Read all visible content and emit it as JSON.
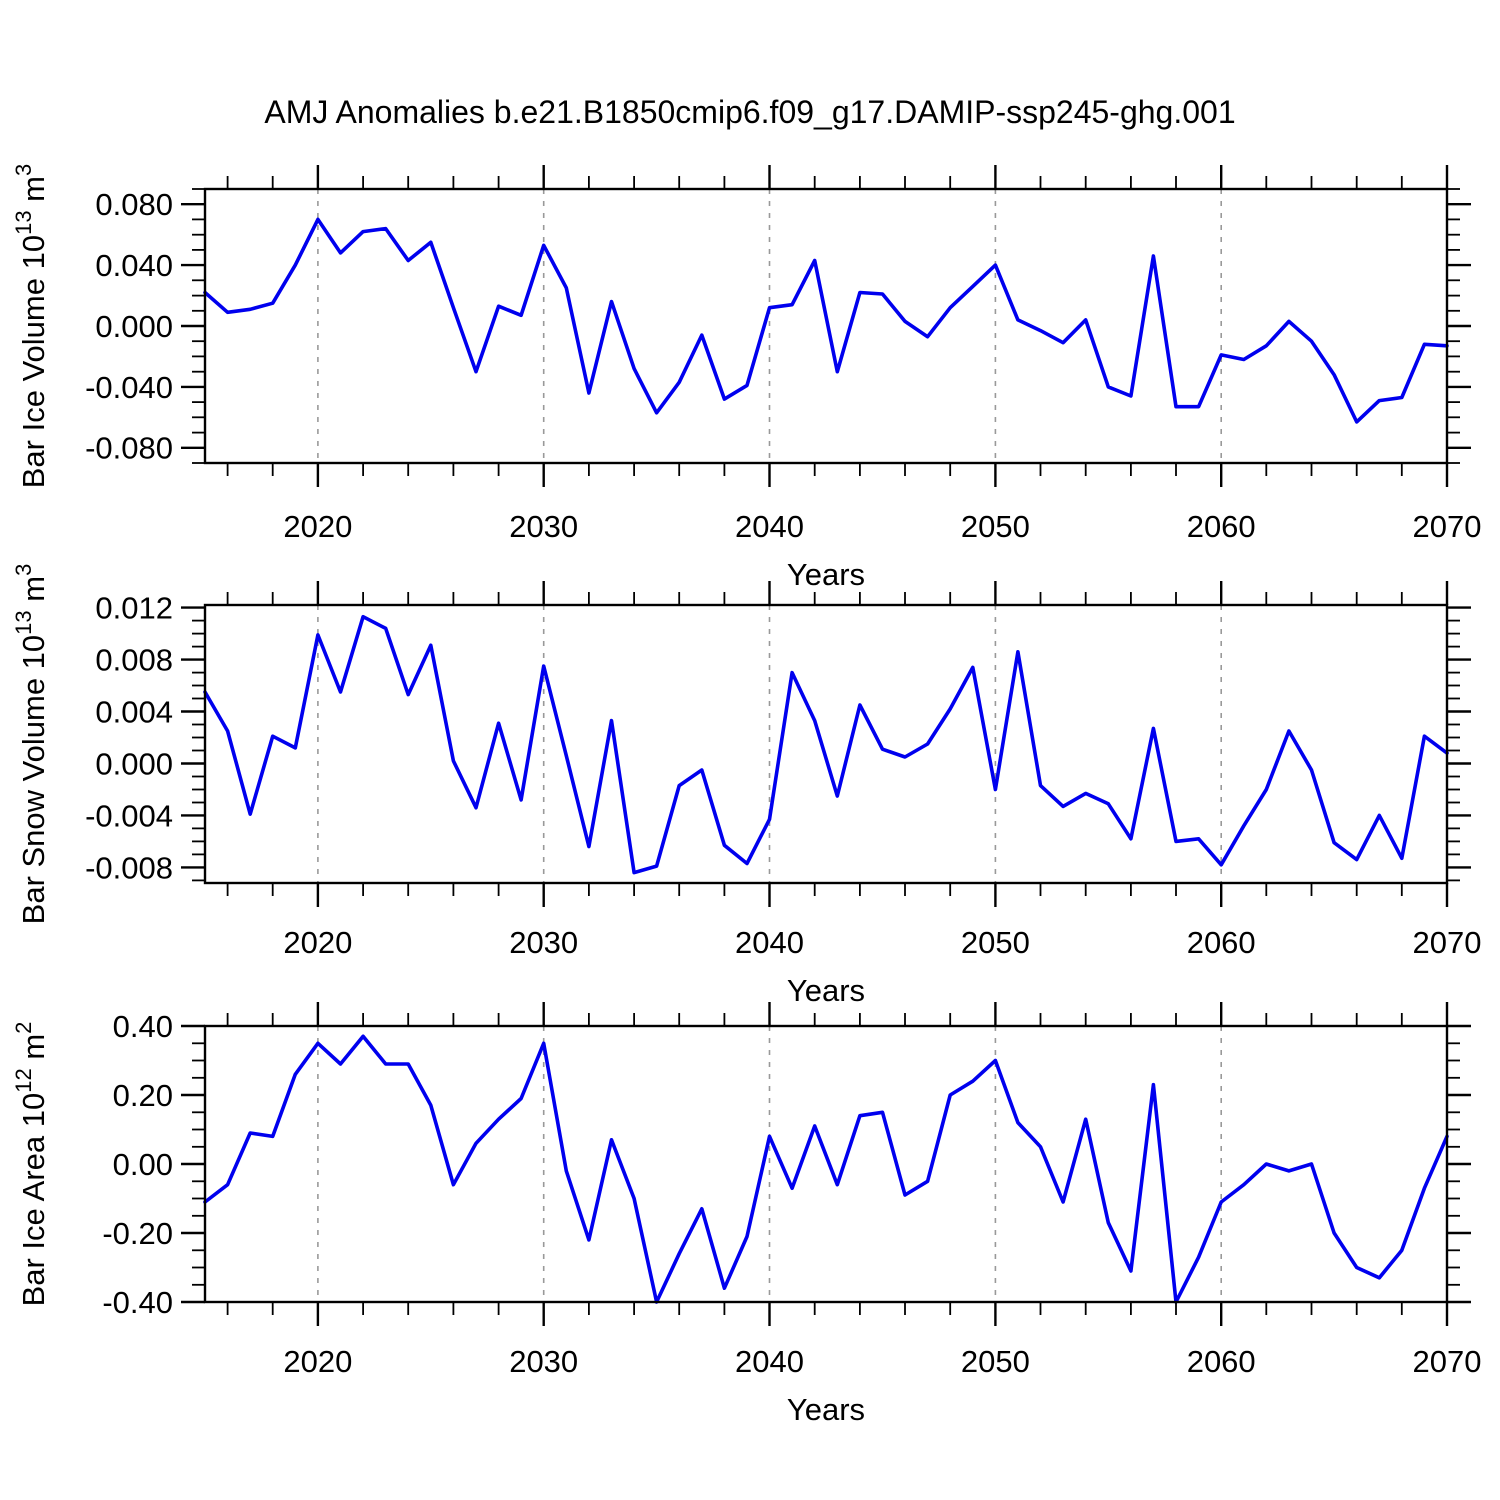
{
  "title": "AMJ Anomalies b.e21.B1850cmip6.f09_g17.DAMIP-ssp245-ghg.001",
  "colors": {
    "line": "#0000EE",
    "grid": "#999999",
    "axis": "#000000",
    "background": "#FFFFFF"
  },
  "x_axis": {
    "label": "Years",
    "range": [
      2015,
      2070
    ],
    "years": [
      2015,
      2016,
      2017,
      2018,
      2019,
      2020,
      2021,
      2022,
      2023,
      2024,
      2025,
      2026,
      2027,
      2028,
      2029,
      2030,
      2031,
      2032,
      2033,
      2034,
      2035,
      2036,
      2037,
      2038,
      2039,
      2040,
      2041,
      2042,
      2043,
      2044,
      2045,
      2046,
      2047,
      2048,
      2049,
      2050,
      2051,
      2052,
      2053,
      2054,
      2055,
      2056,
      2057,
      2058,
      2059,
      2060,
      2061,
      2062,
      2063,
      2064,
      2065,
      2066,
      2067,
      2068,
      2069,
      2070
    ],
    "major_ticks": [
      2020,
      2030,
      2040,
      2050,
      2060,
      2070
    ],
    "major_tick_labels": [
      "2020",
      "2030",
      "2040",
      "2050",
      "2060",
      "2070"
    ],
    "minor_tick_step": 2,
    "gridlines": [
      2020,
      2030,
      2040,
      2050,
      2060
    ]
  },
  "chart_data": [
    {
      "id": "bar-ice-volume",
      "type": "line",
      "title": "",
      "xlabel": "Years",
      "ylabel": "Bar Ice Volume 10^13 m^3",
      "ylabel_parts": {
        "base1": "Bar Ice Volume 10",
        "sup1": "13",
        "base2": " m",
        "sup2": "3"
      },
      "ylim": [
        -0.09,
        0.09
      ],
      "ytick_values": [
        0.08,
        0.04,
        0.0,
        -0.04,
        -0.08
      ],
      "ytick_labels": [
        "0.080",
        "0.040",
        "0.000",
        "-0.040",
        "-0.080"
      ],
      "y_minor_step": 0.01,
      "grid": "x-dashed",
      "legend": "none",
      "values": [
        0.022,
        0.009,
        0.011,
        0.015,
        0.04,
        0.07,
        0.048,
        0.062,
        0.064,
        0.043,
        0.055,
        0.012,
        -0.03,
        0.013,
        0.007,
        0.053,
        0.025,
        -0.044,
        0.016,
        -0.028,
        -0.057,
        -0.037,
        -0.006,
        -0.048,
        -0.039,
        0.012,
        0.014,
        0.043,
        -0.03,
        0.022,
        0.021,
        0.003,
        -0.007,
        0.012,
        0.026,
        0.04,
        0.004,
        -0.003,
        -0.011,
        0.004,
        -0.04,
        -0.046,
        0.046,
        -0.053,
        -0.053,
        -0.019,
        -0.022,
        -0.013,
        0.003,
        -0.01,
        -0.032,
        -0.063,
        -0.049,
        -0.047,
        -0.012,
        -0.013
      ]
    },
    {
      "id": "bar-snow-volume",
      "type": "line",
      "title": "",
      "xlabel": "Years",
      "ylabel": "Bar Snow Volume 10^13 m^3",
      "ylabel_parts": {
        "base1": "Bar Snow Volume 10",
        "sup1": "13",
        "base2": " m",
        "sup2": "3"
      },
      "ylim": [
        -0.0092,
        0.0122
      ],
      "ytick_values": [
        0.012,
        0.008,
        0.004,
        0.0,
        -0.004,
        -0.008
      ],
      "ytick_labels": [
        "0.012",
        "0.008",
        "0.004",
        "0.000",
        "-0.004",
        "-0.008"
      ],
      "y_minor_step": 0.001,
      "grid": "x-dashed",
      "legend": "none",
      "values": [
        0.0055,
        0.0025,
        -0.0039,
        0.0021,
        0.0012,
        0.0099,
        0.0055,
        0.0113,
        0.0104,
        0.0053,
        0.0091,
        0.0002,
        -0.0034,
        0.0031,
        -0.0028,
        0.0075,
        0.0006,
        -0.0064,
        0.0033,
        -0.0084,
        -0.0079,
        -0.0017,
        -0.0005,
        -0.0063,
        -0.0077,
        -0.0043,
        0.007,
        0.0033,
        -0.0025,
        0.0045,
        0.0011,
        0.0005,
        0.0015,
        0.0042,
        0.0074,
        -0.002,
        0.0086,
        -0.0017,
        -0.0033,
        -0.0023,
        -0.0031,
        -0.0058,
        0.0027,
        -0.006,
        -0.0058,
        -0.0078,
        -0.0048,
        -0.002,
        0.0025,
        -0.0005,
        -0.0061,
        -0.0074,
        -0.004,
        -0.0073,
        0.0021,
        0.0008
      ]
    },
    {
      "id": "bar-ice-area",
      "type": "line",
      "title": "",
      "xlabel": "Years",
      "ylabel": "Bar Ice Area 10^12 m^2",
      "ylabel_parts": {
        "base1": "Bar Ice Area 10",
        "sup1": "12",
        "base2": " m",
        "sup2": "2"
      },
      "ylim": [
        -0.4,
        0.4
      ],
      "ytick_values": [
        0.4,
        0.2,
        0.0,
        -0.2,
        -0.4
      ],
      "ytick_labels": [
        "0.40",
        "0.20",
        "0.00",
        "-0.20",
        "-0.40"
      ],
      "y_minor_step": 0.05,
      "grid": "x-dashed",
      "legend": "none",
      "values": [
        -0.11,
        -0.06,
        0.09,
        0.08,
        0.26,
        0.35,
        0.29,
        0.37,
        0.29,
        0.29,
        0.17,
        -0.06,
        0.06,
        0.13,
        0.19,
        0.35,
        -0.02,
        -0.22,
        0.07,
        -0.1,
        -0.4,
        -0.26,
        -0.13,
        -0.36,
        -0.21,
        0.08,
        -0.07,
        0.11,
        -0.06,
        0.14,
        0.15,
        -0.09,
        -0.05,
        0.2,
        0.24,
        0.3,
        0.12,
        0.05,
        -0.11,
        0.13,
        -0.17,
        -0.31,
        0.23,
        -0.4,
        -0.27,
        -0.11,
        -0.06,
        0.0,
        -0.02,
        0.0,
        -0.2,
        -0.3,
        -0.33,
        -0.25,
        -0.07,
        0.08
      ]
    }
  ]
}
